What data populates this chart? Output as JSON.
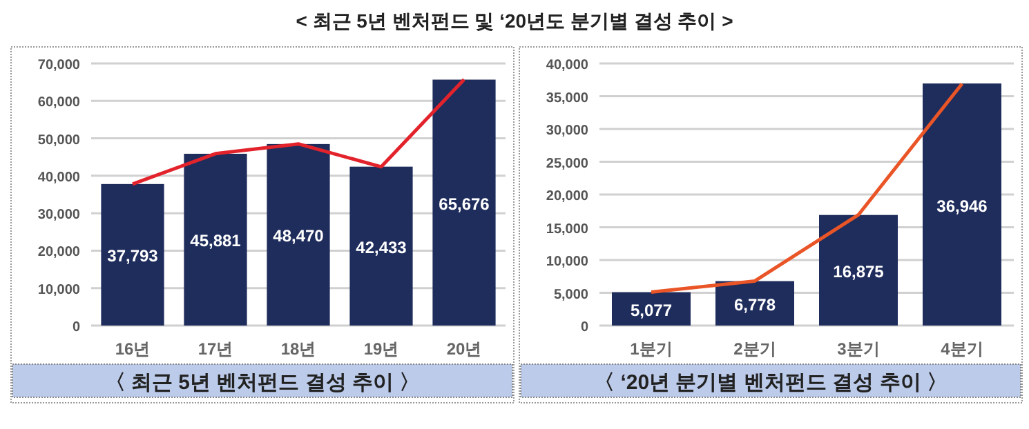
{
  "chart_data": [
    {
      "type": "bar",
      "title": "< 최근 5년 벤처펀드 및 ‘20년도 분기별 결성 추이 >",
      "annotations": [
        "〈 최근 5년 벤처펀드 결성 추이 〉"
      ],
      "categories": [
        "16년",
        "17년",
        "18년",
        "19년",
        "20년"
      ],
      "series": [
        {
          "color": "#1f2d5c",
          "values": [
            37793,
            45881,
            48470,
            42433,
            65676
          ],
          "value_labels": [
            "37,793",
            "45,881",
            "48,470",
            "42,433",
            "65,676"
          ]
        },
        {
          "type": "line",
          "color": "#e3232c",
          "values": [
            37800,
            45900,
            48500,
            42400,
            65700
          ]
        }
      ],
      "ylim": [
        0,
        70000
      ],
      "yticks": [
        0,
        {
          "value": 10000,
          "label": "10,000"
        },
        {
          "value": 20000,
          "label": "20,000"
        },
        {
          "value": 30000,
          "label": "30,000"
        },
        {
          "value": 40000,
          "label": "40,000"
        },
        {
          "value": 50000,
          "label": "50,000"
        },
        {
          "value": 60000,
          "label": "60,000"
        },
        {
          "value": 70000,
          "label": "70,000"
        }
      ],
      "grid": "y"
    },
    {
      "type": "bar",
      "annotations": [
        "〈 ‘20년 분기별 벤처펀드 결성 추이 〉"
      ],
      "categories": [
        "1분기",
        "2분기",
        "3분기",
        "4분기"
      ],
      "series": [
        {
          "color": "#1f2d5c",
          "values": [
            5077,
            6778,
            16875,
            36946
          ],
          "value_labels": [
            "5,077",
            "6,778",
            "16,875",
            "36,946"
          ]
        },
        {
          "type": "line",
          "color": "#ea5527",
          "values": [
            5100,
            6800,
            16900,
            36900
          ]
        }
      ],
      "ylim": [
        0,
        40000
      ],
      "yticks": [
        0,
        {
          "value": 5000,
          "label": "5,000"
        },
        {
          "value": 10000,
          "label": "10,000"
        },
        {
          "value": 15000,
          "label": "15,000"
        },
        {
          "value": 20000,
          "label": "20,000"
        },
        {
          "value": 25000,
          "label": "25,000"
        },
        {
          "value": 30000,
          "label": "30,000"
        },
        {
          "value": 35000,
          "label": "35,000"
        },
        {
          "value": 40000,
          "label": "40,000"
        }
      ],
      "grid": "y"
    }
  ]
}
